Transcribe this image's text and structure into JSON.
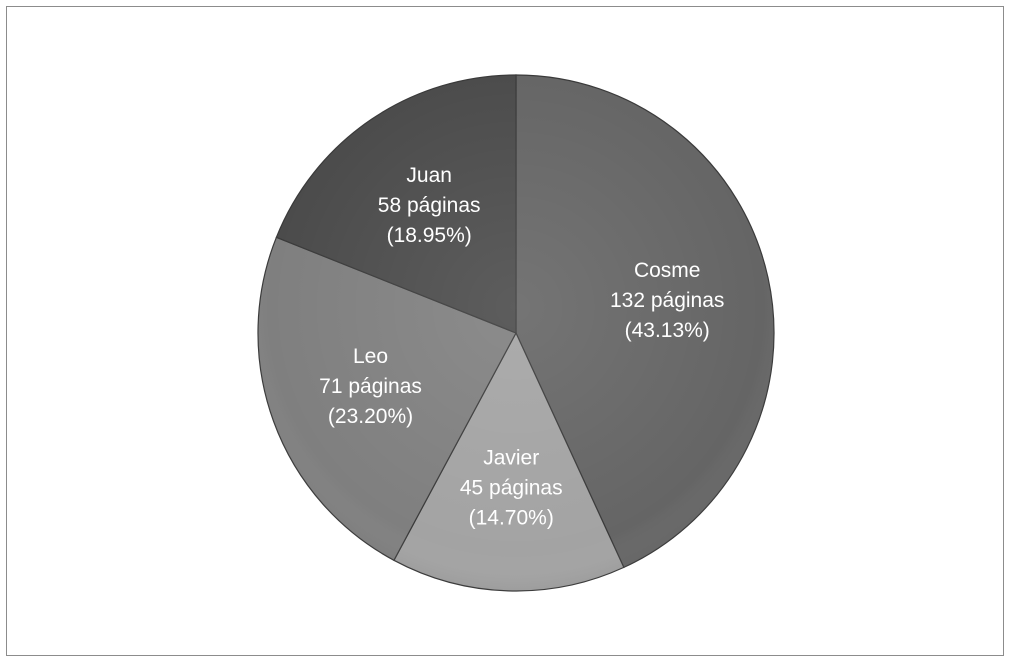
{
  "chart_data": {
    "type": "pie",
    "title": "",
    "start_angle_deg": 0,
    "direction": "clockwise",
    "slices": [
      {
        "name": "Cosme",
        "value": 132,
        "value_label": "132 páginas",
        "percent_label": "(43.13%)",
        "color": "#656565"
      },
      {
        "name": "Javier",
        "value": 45,
        "value_label": "45 páginas",
        "percent_label": "(14.70%)",
        "color": "#a3a3a3"
      },
      {
        "name": "Leo",
        "value": 71,
        "value_label": "71 páginas",
        "percent_label": "(23.20%)",
        "color": "#7f7f7f"
      },
      {
        "name": "Juan",
        "value": 58,
        "value_label": "58 páginas",
        "percent_label": "(18.95%)",
        "color": "#4b4b4b"
      }
    ]
  }
}
